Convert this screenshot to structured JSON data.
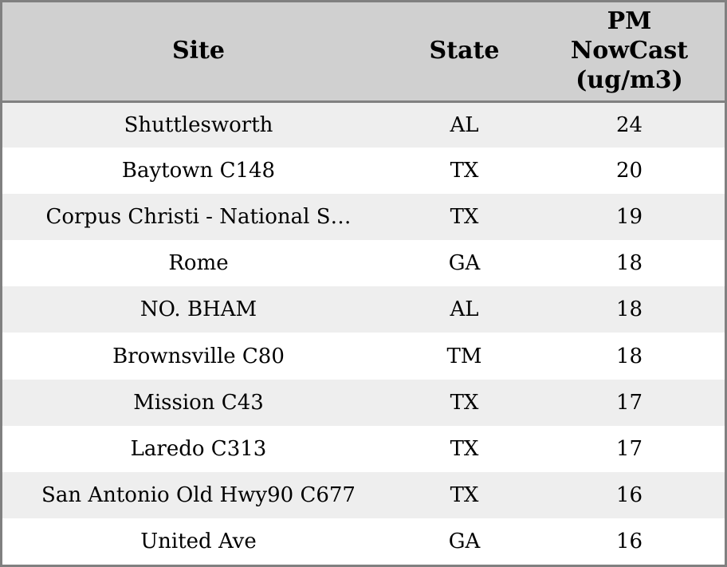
{
  "chart_data": {
    "type": "table",
    "columns": [
      "Site",
      "State",
      "PM NowCast (ug/m3)"
    ],
    "rows": [
      [
        "Shuttlesworth",
        "AL",
        24
      ],
      [
        "Baytown C148",
        "TX",
        20
      ],
      [
        "Corpus Christi - National S…",
        "TX",
        19
      ],
      [
        "Rome",
        "GA",
        18
      ],
      [
        "NO. BHAM",
        "AL",
        18
      ],
      [
        "Brownsville C80",
        "TM",
        18
      ],
      [
        "Mission C43",
        "TX",
        17
      ],
      [
        "Laredo C313",
        "TX",
        17
      ],
      [
        "San Antonio Old Hwy90 C677",
        "TX",
        16
      ],
      [
        "United Ave",
        "GA",
        16
      ]
    ],
    "layout": {
      "header_background": "#d0d0d0",
      "row_alternate_background": "#eeeeee",
      "row_background": "#ffffff",
      "border_color": "#808080",
      "text_align": "center"
    }
  },
  "colors": {
    "border": "#808080",
    "header_bg": "#d0d0d0",
    "row_odd_bg": "#eeeeee",
    "row_even_bg": "#ffffff",
    "text": "#000000"
  }
}
